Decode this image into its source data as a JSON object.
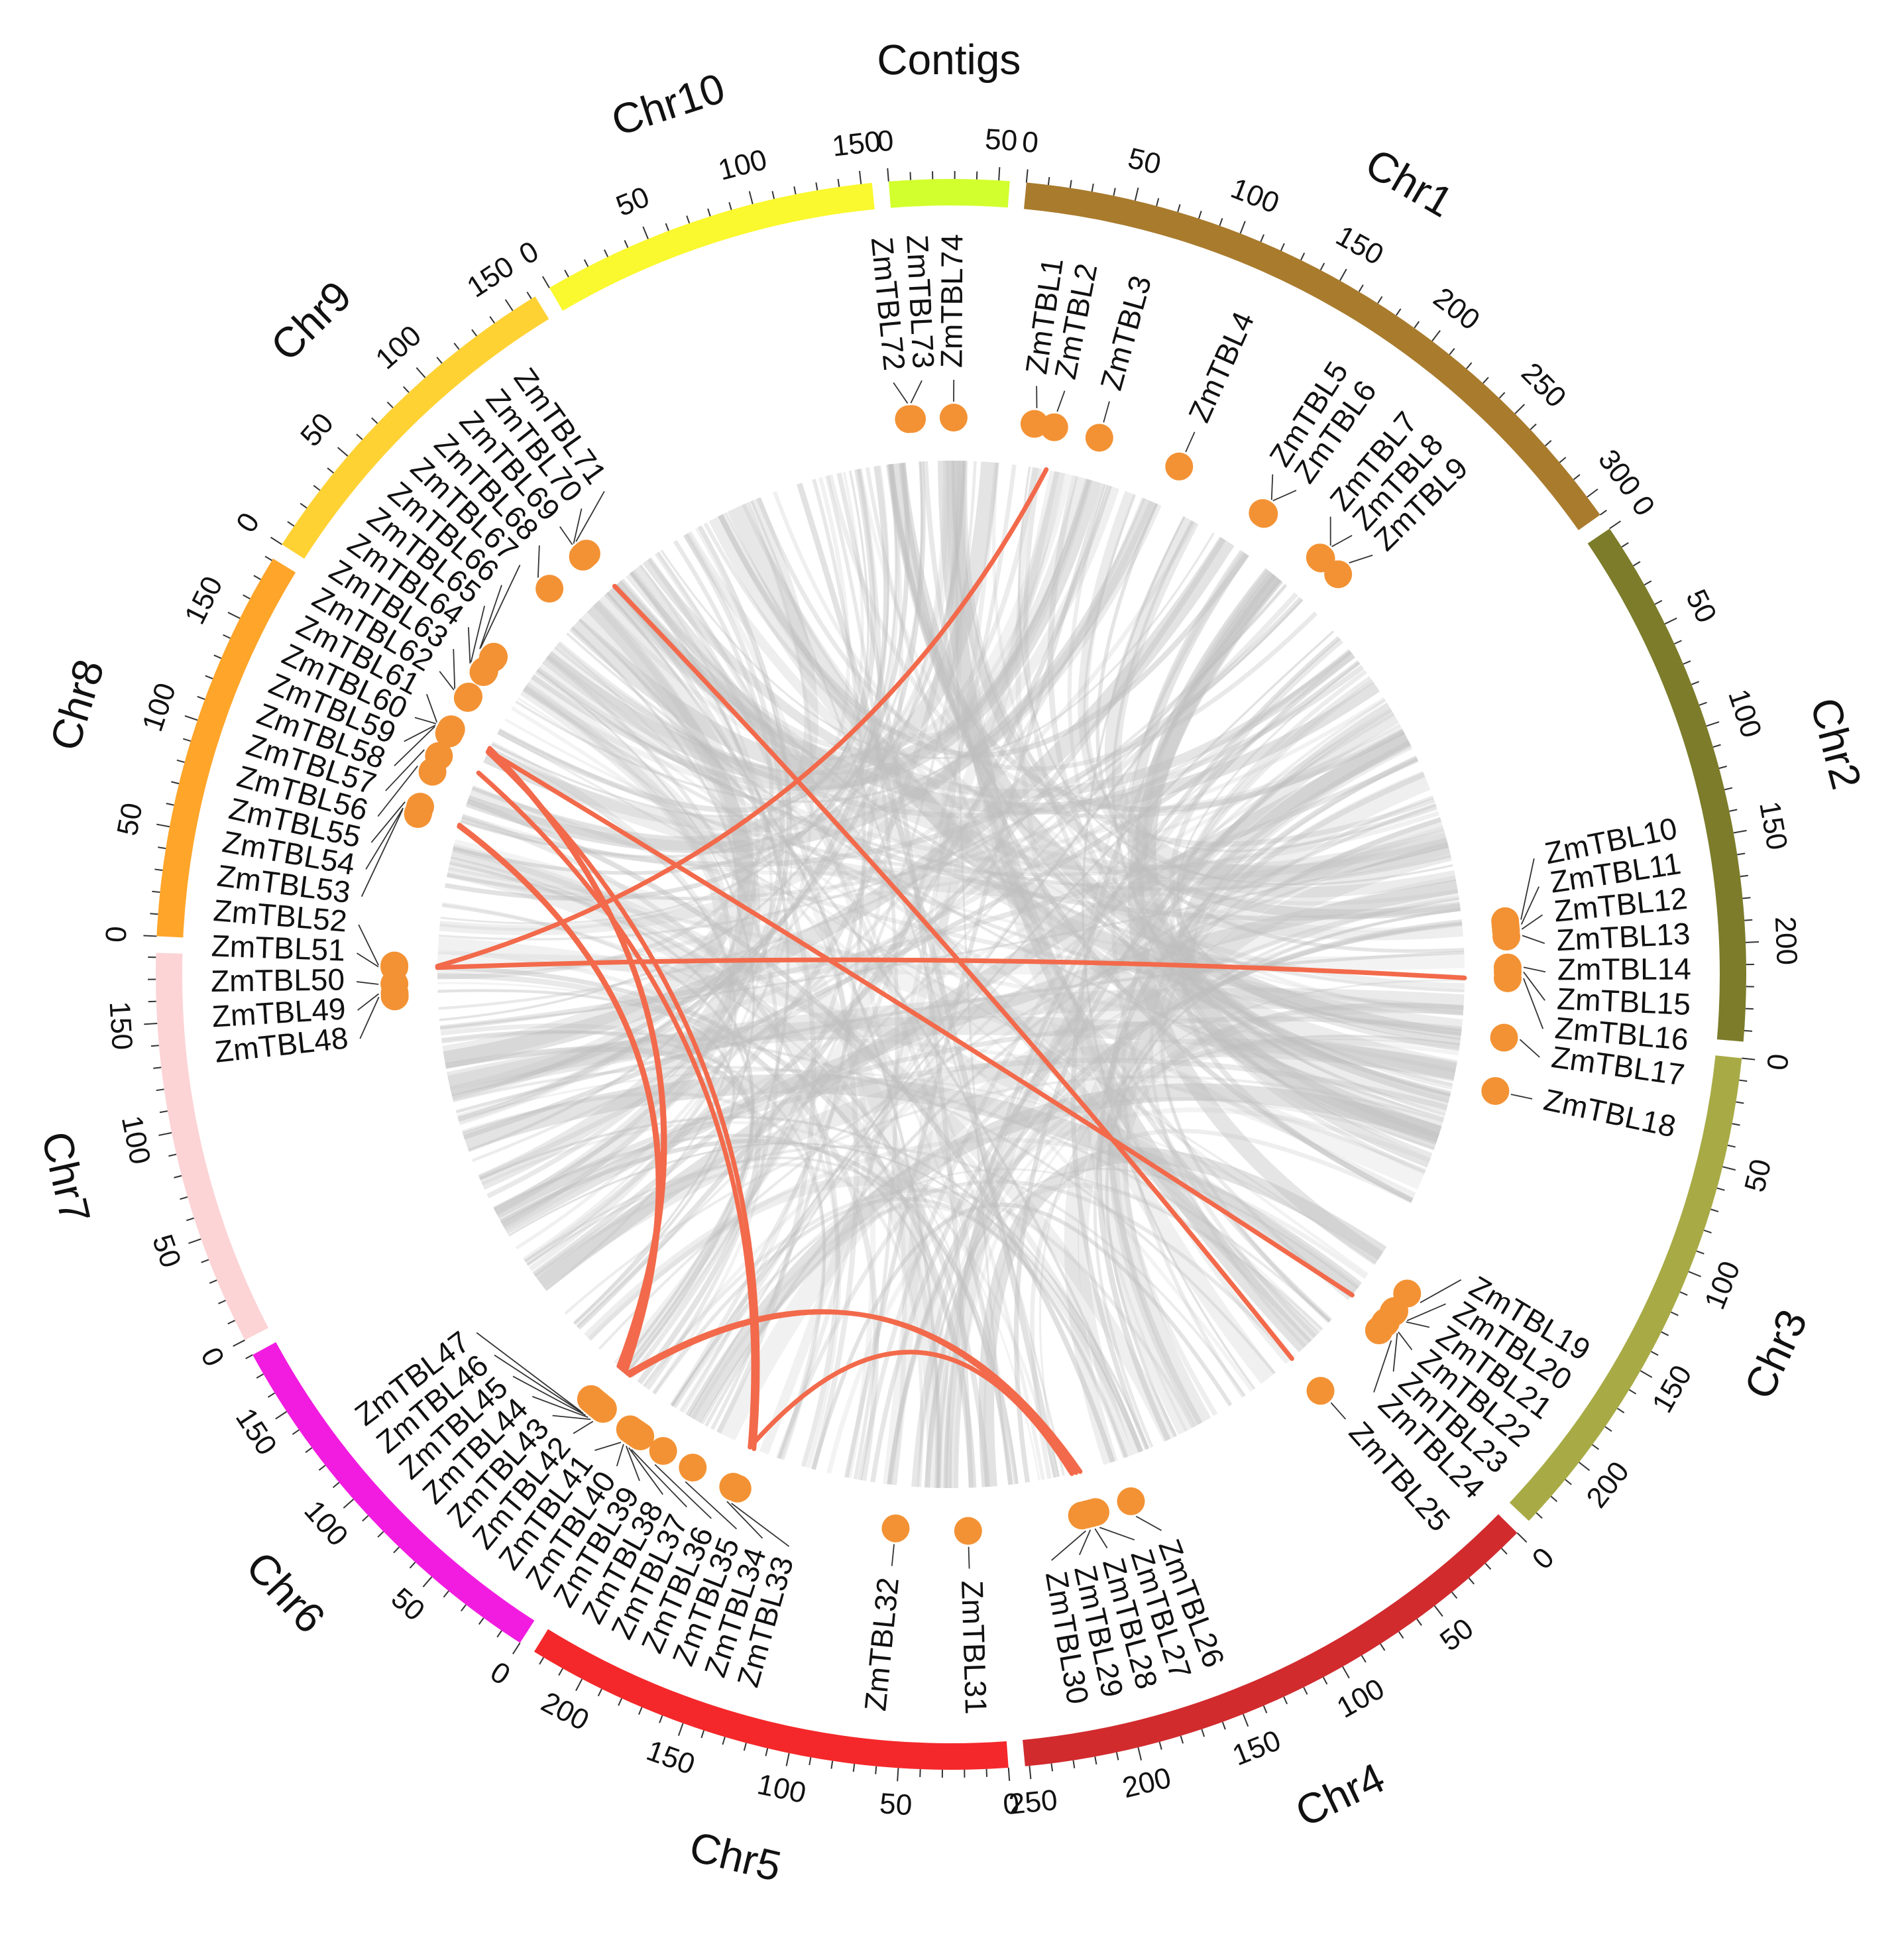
{
  "chart_data": {
    "type": "circos",
    "description_hidden": false,
    "units": "Mb",
    "chromosomes": [
      {
        "name": "Chr1",
        "length": 310,
        "color": "#A97B2D",
        "ticks": [
          0,
          50,
          100,
          150,
          200,
          250,
          300
        ]
      },
      {
        "name": "Chr2",
        "length": 245,
        "color": "#7C7C2A",
        "ticks": [
          0,
          50,
          100,
          150,
          200
        ]
      },
      {
        "name": "Chr3",
        "length": 235,
        "color": "#A8AA45",
        "ticks": [
          0,
          50,
          100,
          150,
          200
        ]
      },
      {
        "name": "Chr4",
        "length": 252,
        "color": "#D12B2E",
        "ticks": [
          0,
          50,
          100,
          150,
          200,
          250
        ]
      },
      {
        "name": "Chr5",
        "length": 225,
        "color": "#F4282A",
        "ticks": [
          0,
          50,
          100,
          150,
          200
        ]
      },
      {
        "name": "Chr6",
        "length": 180,
        "color": "#F21CE0",
        "ticks": [
          0,
          50,
          100,
          150
        ]
      },
      {
        "name": "Chr7",
        "length": 182,
        "color": "#FCD4D6",
        "ticks": [
          0,
          50,
          100,
          150
        ]
      },
      {
        "name": "Chr8",
        "length": 181,
        "color": "#FFA52A",
        "ticks": [
          0,
          50,
          100,
          150
        ]
      },
      {
        "name": "Chr9",
        "length": 162,
        "color": "#FFD234",
        "ticks": [
          0,
          50,
          100,
          150
        ]
      },
      {
        "name": "Chr10",
        "length": 155,
        "color": "#FAF82E",
        "ticks": [
          0,
          50,
          100,
          150
        ]
      },
      {
        "name": "Contigs",
        "length": 55,
        "color": "#D2FF2E",
        "ticks": [
          0,
          50
        ]
      }
    ],
    "genes": [
      {
        "name": "ZmTBL1",
        "chr": "Chr1",
        "pos": 20
      },
      {
        "name": "ZmTBL2",
        "chr": "Chr1",
        "pos": 33
      },
      {
        "name": "ZmTBL3",
        "chr": "Chr1",
        "pos": 63
      },
      {
        "name": "ZmTBL4",
        "chr": "Chr1",
        "pos": 118
      },
      {
        "name": "ZmTBL5",
        "chr": "Chr1",
        "pos": 180
      },
      {
        "name": "ZmTBL6",
        "chr": "Chr1",
        "pos": 181
      },
      {
        "name": "ZmTBL7",
        "chr": "Chr1",
        "pos": 227
      },
      {
        "name": "ZmTBL8",
        "chr": "Chr1",
        "pos": 228
      },
      {
        "name": "ZmTBL9",
        "chr": "Chr1",
        "pos": 243
      },
      {
        "name": "ZmTBL10",
        "chr": "Chr2",
        "pos": 180
      },
      {
        "name": "ZmTBL11",
        "chr": "Chr2",
        "pos": 183
      },
      {
        "name": "ZmTBL12",
        "chr": "Chr2",
        "pos": 186
      },
      {
        "name": "ZmTBL13",
        "chr": "Chr2",
        "pos": 190
      },
      {
        "name": "ZmTBL14",
        "chr": "Chr2",
        "pos": 210
      },
      {
        "name": "ZmTBL15",
        "chr": "Chr2",
        "pos": 213
      },
      {
        "name": "ZmTBL16",
        "chr": "Chr2",
        "pos": 217
      },
      {
        "name": "ZmTBL17",
        "chr": "Chr3",
        "pos": 3
      },
      {
        "name": "ZmTBL18",
        "chr": "Chr3",
        "pos": 38
      },
      {
        "name": "ZmTBL19",
        "chr": "Chr3",
        "pos": 182
      },
      {
        "name": "ZmTBL20",
        "chr": "Chr3",
        "pos": 196
      },
      {
        "name": "ZmTBL21",
        "chr": "Chr3",
        "pos": 197
      },
      {
        "name": "ZmTBL22",
        "chr": "Chr3",
        "pos": 205
      },
      {
        "name": "ZmTBL23",
        "chr": "Chr3",
        "pos": 206
      },
      {
        "name": "ZmTBL24",
        "chr": "Chr3",
        "pos": 212
      },
      {
        "name": "ZmTBL25",
        "chr": "Chr4",
        "pos": 24
      },
      {
        "name": "ZmTBL26",
        "chr": "Chr4",
        "pos": 167
      },
      {
        "name": "ZmTBL27",
        "chr": "Chr4",
        "pos": 191
      },
      {
        "name": "ZmTBL28",
        "chr": "Chr4",
        "pos": 194
      },
      {
        "name": "ZmTBL29",
        "chr": "Chr4",
        "pos": 197
      },
      {
        "name": "ZmTBL30",
        "chr": "Chr4",
        "pos": 200
      },
      {
        "name": "ZmTBL31",
        "chr": "Chr5",
        "pos": 15
      },
      {
        "name": "ZmTBL32",
        "chr": "Chr5",
        "pos": 62
      },
      {
        "name": "ZmTBL33",
        "chr": "Chr5",
        "pos": 168
      },
      {
        "name": "ZmTBL34",
        "chr": "Chr5",
        "pos": 171
      },
      {
        "name": "ZmTBL35",
        "chr": "Chr5",
        "pos": 200
      },
      {
        "name": "ZmTBL36",
        "chr": "Chr5",
        "pos": 222
      },
      {
        "name": "ZmTBL37",
        "chr": "Chr6",
        "pos": 7
      },
      {
        "name": "ZmTBL38",
        "chr": "Chr6",
        "pos": 9
      },
      {
        "name": "ZmTBL39",
        "chr": "Chr6",
        "pos": 11
      },
      {
        "name": "ZmTBL40",
        "chr": "Chr6",
        "pos": 13
      },
      {
        "name": "ZmTBL41",
        "chr": "Chr6",
        "pos": 15
      },
      {
        "name": "ZmTBL42",
        "chr": "Chr6",
        "pos": 37
      },
      {
        "name": "ZmTBL43",
        "chr": "Chr6",
        "pos": 39
      },
      {
        "name": "ZmTBL44",
        "chr": "Chr6",
        "pos": 41
      },
      {
        "name": "ZmTBL45",
        "chr": "Chr6",
        "pos": 43
      },
      {
        "name": "ZmTBL46",
        "chr": "Chr6",
        "pos": 45
      },
      {
        "name": "ZmTBL47",
        "chr": "Chr6",
        "pos": 47
      },
      {
        "name": "ZmTBL48",
        "chr": "Chr7",
        "pos": 158
      },
      {
        "name": "ZmTBL49",
        "chr": "Chr7",
        "pos": 160
      },
      {
        "name": "ZmTBL50",
        "chr": "Chr7",
        "pos": 166
      },
      {
        "name": "ZmTBL51",
        "chr": "Chr7",
        "pos": 177
      },
      {
        "name": "ZmTBL52",
        "chr": "Chr7",
        "pos": 178
      },
      {
        "name": "ZmTBL53",
        "chr": "Chr8",
        "pos": 88
      },
      {
        "name": "ZmTBL54",
        "chr": "Chr8",
        "pos": 89
      },
      {
        "name": "ZmTBL55",
        "chr": "Chr8",
        "pos": 93
      },
      {
        "name": "ZmTBL56",
        "chr": "Chr8",
        "pos": 117
      },
      {
        "name": "ZmTBL57",
        "chr": "Chr8",
        "pos": 128
      },
      {
        "name": "ZmTBL58",
        "chr": "Chr8",
        "pos": 144
      },
      {
        "name": "ZmTBL59",
        "chr": "Chr8",
        "pos": 145
      },
      {
        "name": "ZmTBL60",
        "chr": "Chr8",
        "pos": 146
      },
      {
        "name": "ZmTBL61",
        "chr": "Chr8",
        "pos": 147
      },
      {
        "name": "ZmTBL62",
        "chr": "Chr8",
        "pos": 170
      },
      {
        "name": "ZmTBL63",
        "chr": "Chr8",
        "pos": 171
      },
      {
        "name": "ZmTBL64",
        "chr": "Chr9",
        "pos": 1
      },
      {
        "name": "ZmTBL65",
        "chr": "Chr9",
        "pos": 2
      },
      {
        "name": "ZmTBL66",
        "chr": "Chr9",
        "pos": 12
      },
      {
        "name": "ZmTBL67",
        "chr": "Chr9",
        "pos": 13
      },
      {
        "name": "ZmTBL68",
        "chr": "Chr9",
        "pos": 70
      },
      {
        "name": "ZmTBL69",
        "chr": "Chr9",
        "pos": 100
      },
      {
        "name": "ZmTBL70",
        "chr": "Chr9",
        "pos": 101
      },
      {
        "name": "ZmTBL71",
        "chr": "Chr9",
        "pos": 103
      },
      {
        "name": "ZmTBL72",
        "chr": "Contigs",
        "pos": 1
      },
      {
        "name": "ZmTBL73",
        "chr": "Contigs",
        "pos": 3
      },
      {
        "name": "ZmTBL74",
        "chr": "Contigs",
        "pos": 30
      }
    ],
    "links": [
      [
        "ZmTBL2",
        "ZmTBL52"
      ],
      [
        "ZmTBL71",
        "ZmTBL25"
      ],
      [
        "ZmTBL16",
        "ZmTBL51"
      ],
      [
        "ZmTBL59",
        "ZmTBL22"
      ],
      [
        "ZmTBL60",
        "ZmTBL47"
      ],
      [
        "ZmTBL61",
        "ZmTBL46"
      ],
      [
        "ZmTBL58",
        "ZmTBL33"
      ],
      [
        "ZmTBL57",
        "ZmTBL34"
      ],
      [
        "ZmTBL53",
        "ZmTBL45"
      ],
      [
        "ZmTBL54",
        "ZmTBL44"
      ],
      [
        "ZmTBL42",
        "ZmTBL28"
      ],
      [
        "ZmTBL43",
        "ZmTBL29"
      ],
      [
        "ZmTBL34",
        "ZmTBL30"
      ]
    ],
    "link_color": "#F26A4B",
    "background_link_color": "#BFBFBF",
    "gene_marker_color": "#F39234"
  }
}
